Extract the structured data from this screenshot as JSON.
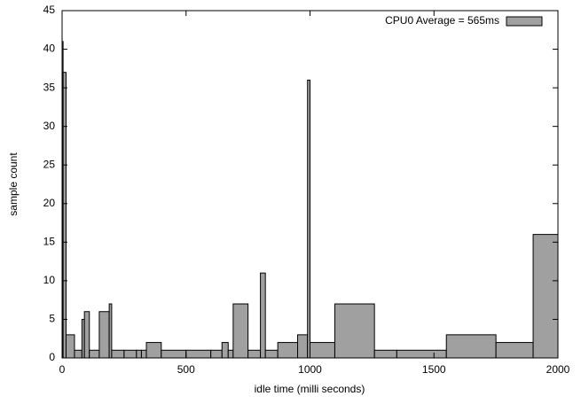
{
  "chart_data": {
    "type": "histogram",
    "xlabel": "idle time (milli seconds)",
    "ylabel": "sample count",
    "bins": [
      0,
      4,
      16,
      50,
      80,
      90,
      110,
      150,
      190,
      200,
      250,
      300,
      320,
      340,
      400,
      500,
      600,
      645,
      670,
      690,
      750,
      800,
      820,
      870,
      950,
      990,
      1000,
      1100,
      1260,
      1350,
      1550,
      1750,
      1900,
      2000
    ],
    "series": [
      {
        "name": "CPU0 Average = 565ms",
        "color": "#a0a0a0",
        "values": [
          41,
          37,
          3,
          1,
          5,
          6,
          1,
          6,
          7,
          1,
          1,
          1,
          1,
          2,
          1,
          1,
          1,
          2,
          1,
          7,
          1,
          11,
          1,
          2,
          3,
          36,
          2,
          7,
          1,
          1,
          3,
          2,
          16
        ]
      }
    ],
    "xlim": [
      0,
      2000
    ],
    "xticks": [
      0,
      500,
      1000,
      1500,
      2000
    ],
    "ylim": [
      0,
      45
    ],
    "yticks": [
      0,
      5,
      10,
      15,
      20,
      25,
      30,
      35,
      40,
      45
    ],
    "legend": "top-right",
    "grid": false
  }
}
